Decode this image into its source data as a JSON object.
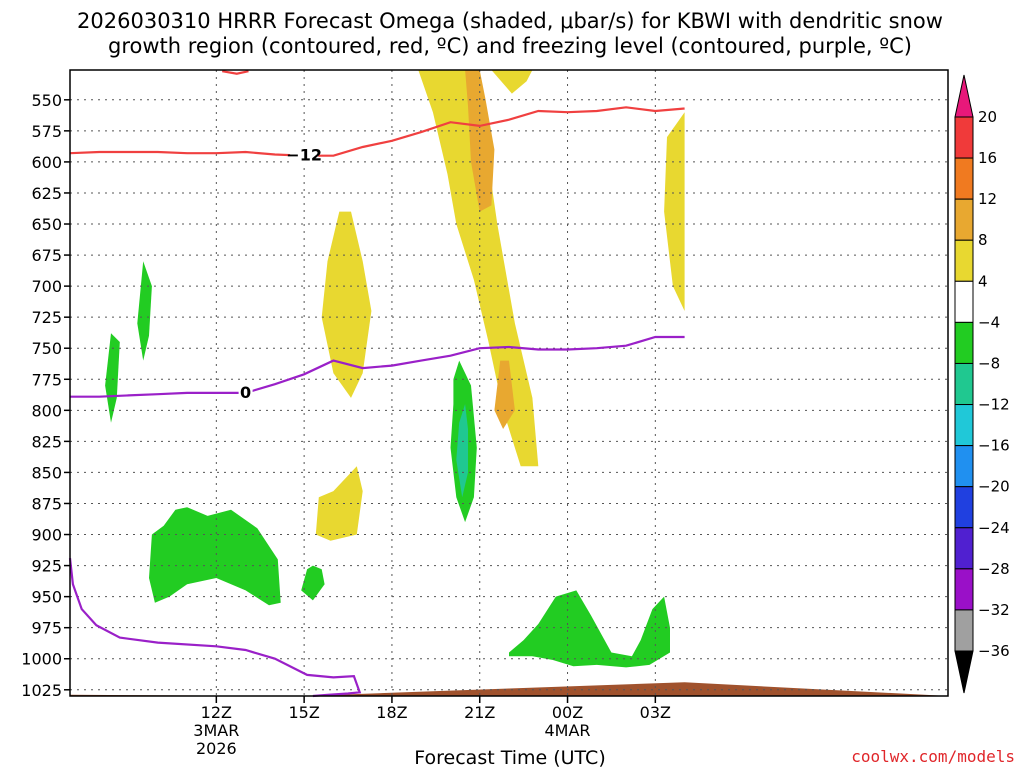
{
  "chart_data": {
    "type": "heatmap",
    "title_line1": "2026030310 HRRR Forecast Omega (shaded, μbar/s) for KBWI with dendritic snow",
    "title_line2": "growth region (contoured, red, ºC) and freezing level (contoured, purple, ºC)",
    "xlabel": "Forecast Time (UTC)",
    "credit": "coolwx.com/models",
    "x_range_hours": [
      7,
      37
    ],
    "y_range_mb": [
      526,
      1030
    ],
    "y_ticks": [
      550,
      575,
      600,
      625,
      650,
      675,
      700,
      725,
      750,
      775,
      800,
      825,
      850,
      875,
      900,
      925,
      950,
      975,
      1000,
      1025
    ],
    "x_ticks": [
      {
        "hour": 12,
        "label": "12Z",
        "sub1": "3MAR",
        "sub2": "2026"
      },
      {
        "hour": 15,
        "label": "15Z",
        "sub1": "",
        "sub2": ""
      },
      {
        "hour": 18,
        "label": "18Z",
        "sub1": "",
        "sub2": ""
      },
      {
        "hour": 21,
        "label": "21Z",
        "sub1": "",
        "sub2": ""
      },
      {
        "hour": 24,
        "label": "00Z",
        "sub1": "4MAR",
        "sub2": ""
      },
      {
        "hour": 27,
        "label": "03Z",
        "sub1": "",
        "sub2": ""
      }
    ],
    "colorbar_levels": [
      "20",
      "16",
      "12",
      "8",
      "4",
      "−4",
      "−8",
      "−12",
      "−16",
      "−20",
      "−24",
      "−28",
      "−32",
      "−36"
    ],
    "colorbar_colors": [
      "#f03a3a",
      "#f07a20",
      "#e8a830",
      "#e8d830",
      "#ffffff",
      "#22cc22",
      "#20c890",
      "#20c8d8",
      "#2090f0",
      "#2040e0",
      "#5020d0",
      "#9a10c8",
      "#a0a0a0"
    ],
    "colorbar_top_color": "#e8187a",
    "colorbar_bottom_color": "#000000",
    "contour_labels": {
      "red": "−12",
      "purple": "0"
    },
    "line_colors": {
      "red": "#f04040",
      "purple": "#9a20c8",
      "terrain": "#a0522d"
    },
    "red_contour_main": [
      [
        7,
        593
      ],
      [
        8,
        592
      ],
      [
        9,
        592
      ],
      [
        10,
        592
      ],
      [
        11,
        593
      ],
      [
        12,
        593
      ],
      [
        13,
        592
      ],
      [
        14,
        594
      ],
      [
        15,
        595
      ],
      [
        16,
        595
      ],
      [
        17,
        588
      ],
      [
        18,
        583
      ],
      [
        19,
        576
      ],
      [
        20,
        568
      ],
      [
        21,
        571
      ],
      [
        22,
        566
      ],
      [
        23,
        559
      ],
      [
        24,
        560
      ],
      [
        25,
        559
      ],
      [
        26,
        556
      ],
      [
        27,
        559
      ],
      [
        28,
        557
      ]
    ],
    "red_contour_top": [
      [
        12.2,
        527
      ],
      [
        12.7,
        529
      ],
      [
        13.1,
        527
      ]
    ],
    "freezing_level": [
      [
        7,
        789
      ],
      [
        8,
        789
      ],
      [
        9,
        788
      ],
      [
        10,
        787
      ],
      [
        11,
        786
      ],
      [
        12,
        786
      ],
      [
        13,
        786
      ],
      [
        14,
        779
      ],
      [
        15,
        771
      ],
      [
        16,
        760
      ],
      [
        17,
        766
      ],
      [
        18,
        764
      ],
      [
        19,
        760
      ],
      [
        20,
        756
      ],
      [
        21,
        750
      ],
      [
        22,
        749
      ],
      [
        23,
        751
      ],
      [
        24,
        751
      ],
      [
        25,
        750
      ],
      [
        26,
        748
      ],
      [
        27,
        741
      ],
      [
        28,
        741
      ]
    ],
    "freezing_low": [
      [
        7,
        919
      ],
      [
        7.1,
        940
      ],
      [
        7.4,
        960
      ],
      [
        7.9,
        973
      ],
      [
        8.7,
        983
      ],
      [
        10,
        987
      ],
      [
        12,
        990
      ],
      [
        13,
        993
      ],
      [
        14,
        1000
      ],
      [
        15.1,
        1013
      ],
      [
        16,
        1015
      ],
      [
        16.7,
        1014
      ],
      [
        16.9,
        1027
      ],
      [
        16.5,
        1028
      ],
      [
        15.8,
        1029
      ],
      [
        15.3,
        1030
      ]
    ],
    "terrain": [
      [
        7,
        1029
      ],
      [
        15,
        1030
      ],
      [
        22,
        1024
      ],
      [
        28,
        1019
      ]
    ],
    "regions": [
      {
        "fill": "#e8d830",
        "pts": [
          [
            18.9,
            526
          ],
          [
            19.4,
            560
          ],
          [
            19.9,
            610
          ],
          [
            20.2,
            650
          ],
          [
            20.8,
            695
          ],
          [
            21.3,
            745
          ],
          [
            21.8,
            800
          ],
          [
            22.4,
            845
          ],
          [
            23,
            845
          ],
          [
            22.8,
            790
          ],
          [
            22.2,
            730
          ],
          [
            21.6,
            650
          ],
          [
            21.2,
            585
          ],
          [
            20.7,
            526
          ]
        ]
      },
      {
        "fill": "#e8a830",
        "pts": [
          [
            20.5,
            526
          ],
          [
            20.6,
            555
          ],
          [
            20.7,
            600
          ],
          [
            21,
            640
          ],
          [
            21.4,
            635
          ],
          [
            21.5,
            590
          ],
          [
            21.2,
            550
          ],
          [
            21.0,
            526
          ]
        ]
      },
      {
        "fill": "#e8d830",
        "pts": [
          [
            21.4,
            526
          ],
          [
            22.1,
            545
          ],
          [
            22.6,
            535
          ],
          [
            22.8,
            526
          ]
        ]
      },
      {
        "fill": "#e8d830",
        "pts": [
          [
            16.2,
            640
          ],
          [
            15.8,
            680
          ],
          [
            15.6,
            725
          ],
          [
            16.0,
            770
          ],
          [
            16.6,
            790
          ],
          [
            17.0,
            770
          ],
          [
            17.3,
            720
          ],
          [
            17.0,
            680
          ],
          [
            16.6,
            640
          ]
        ]
      },
      {
        "fill": "#e8d830",
        "pts": [
          [
            15.5,
            870
          ],
          [
            15.4,
            900
          ],
          [
            15.9,
            905
          ],
          [
            16.8,
            900
          ],
          [
            17.0,
            865
          ],
          [
            16.8,
            845
          ],
          [
            16.0,
            865
          ]
        ]
      },
      {
        "fill": "#e8a830",
        "pts": [
          [
            21.7,
            760
          ],
          [
            21.5,
            800
          ],
          [
            21.8,
            815
          ],
          [
            22.2,
            800
          ],
          [
            22.0,
            760
          ]
        ]
      },
      {
        "fill": "#e8d830",
        "pts": [
          [
            27.4,
            580
          ],
          [
            27.3,
            640
          ],
          [
            27.6,
            700
          ],
          [
            28,
            720
          ],
          [
            28,
            560
          ],
          [
            27.7,
            570
          ]
        ]
      },
      {
        "fill": "#22cc22",
        "pts": [
          [
            9.5,
            680
          ],
          [
            9.3,
            730
          ],
          [
            9.5,
            760
          ],
          [
            9.7,
            740
          ],
          [
            9.8,
            700
          ]
        ]
      },
      {
        "fill": "#22cc22",
        "pts": [
          [
            8.4,
            738
          ],
          [
            8.2,
            780
          ],
          [
            8.4,
            810
          ],
          [
            8.6,
            790
          ],
          [
            8.7,
            745
          ]
        ]
      },
      {
        "fill": "#22cc22",
        "pts": [
          [
            9.8,
            900
          ],
          [
            9.7,
            935
          ],
          [
            9.9,
            955
          ],
          [
            10.4,
            950
          ],
          [
            11,
            940
          ],
          [
            12,
            935
          ],
          [
            13,
            945
          ],
          [
            13.8,
            957
          ],
          [
            14.2,
            955
          ],
          [
            14.1,
            920
          ],
          [
            13.4,
            895
          ],
          [
            12.5,
            880
          ],
          [
            11.7,
            885
          ],
          [
            11,
            878
          ],
          [
            10.6,
            880
          ],
          [
            10.2,
            893
          ]
        ]
      },
      {
        "fill": "#22cc22",
        "pts": [
          [
            15.1,
            928
          ],
          [
            14.9,
            945
          ],
          [
            15.3,
            953
          ],
          [
            15.7,
            940
          ],
          [
            15.6,
            928
          ],
          [
            15.3,
            925
          ]
        ]
      },
      {
        "fill": "#22cc22",
        "pts": [
          [
            20.1,
            795
          ],
          [
            20.0,
            830
          ],
          [
            20.2,
            870
          ],
          [
            20.5,
            890
          ],
          [
            20.8,
            870
          ],
          [
            20.9,
            830
          ],
          [
            20.7,
            780
          ],
          [
            20.3,
            760
          ],
          [
            20.1,
            775
          ]
        ]
      },
      {
        "fill": "#20c890",
        "pts": [
          [
            20.3,
            810
          ],
          [
            20.2,
            840
          ],
          [
            20.4,
            870
          ],
          [
            20.6,
            850
          ],
          [
            20.6,
            815
          ],
          [
            20.5,
            795
          ]
        ]
      },
      {
        "fill": "#22cc22",
        "pts": [
          [
            22,
            995
          ],
          [
            22.5,
            985
          ],
          [
            23,
            972
          ],
          [
            23.6,
            950
          ],
          [
            24.3,
            945
          ],
          [
            24.8,
            965
          ],
          [
            25.5,
            995
          ],
          [
            26.2,
            998
          ],
          [
            26.5,
            985
          ],
          [
            26.9,
            960
          ],
          [
            27.3,
            950
          ],
          [
            27.5,
            975
          ],
          [
            27.5,
            995
          ],
          [
            26.8,
            1005
          ],
          [
            26,
            1007
          ],
          [
            25,
            1005
          ],
          [
            24.2,
            1006
          ],
          [
            23.5,
            1001
          ],
          [
            22.8,
            998
          ],
          [
            22,
            998
          ]
        ]
      }
    ]
  }
}
